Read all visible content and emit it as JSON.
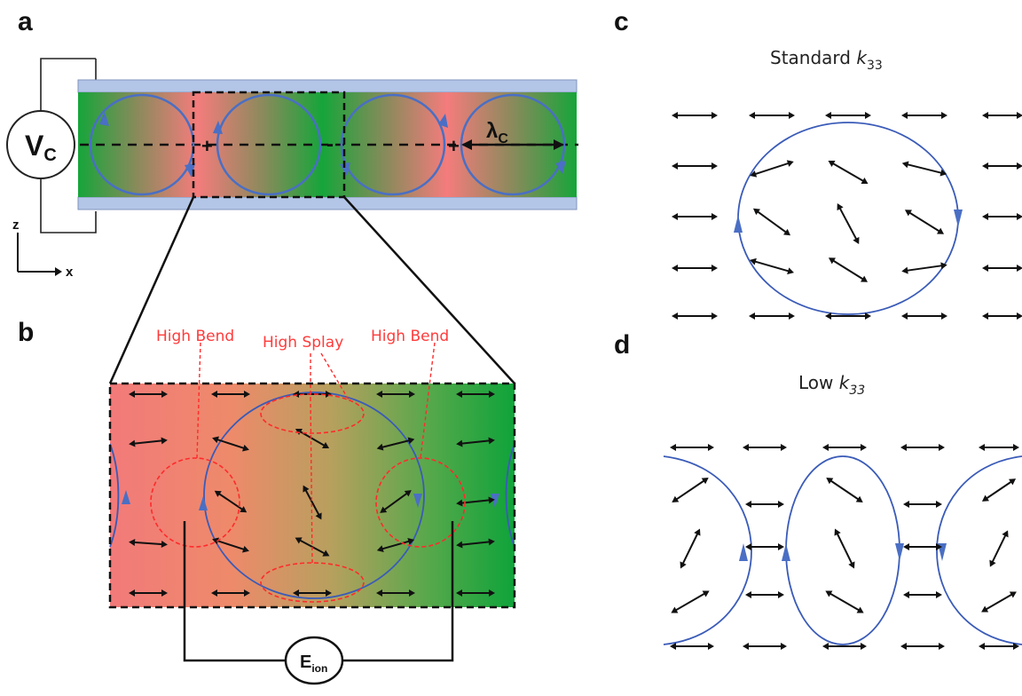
{
  "panels": {
    "a": "a",
    "b": "b",
    "c": "c",
    "d": "d"
  },
  "panel_a": {
    "voltage_main": "V",
    "voltage_sub": "C",
    "wavelength_main": "λ",
    "wavelength_sub": "C",
    "plus_sign": "+",
    "minus_sign": "-",
    "axis_z": "z",
    "axis_x": "x"
  },
  "panel_b": {
    "label_high_bend_left": "High Bend",
    "label_high_splay": "High Splay",
    "label_high_bend_right": "High Bend",
    "eion_main": "E",
    "eion_sub": "ion"
  },
  "panel_c": {
    "title_main": "Standard ",
    "title_k": "k",
    "title_sub": "33"
  },
  "panel_d": {
    "title_main": "Low ",
    "title_k": "k",
    "title_sub": "33"
  },
  "colors": {
    "substrate": "#b4c6e7",
    "green": "#1fa33a",
    "pink": "#f28b8b",
    "vortex": "#4a6fc4",
    "thin_vortex": "#3a5bb8",
    "red_annot": "#ff3b3b",
    "arrow": "#111111"
  }
}
